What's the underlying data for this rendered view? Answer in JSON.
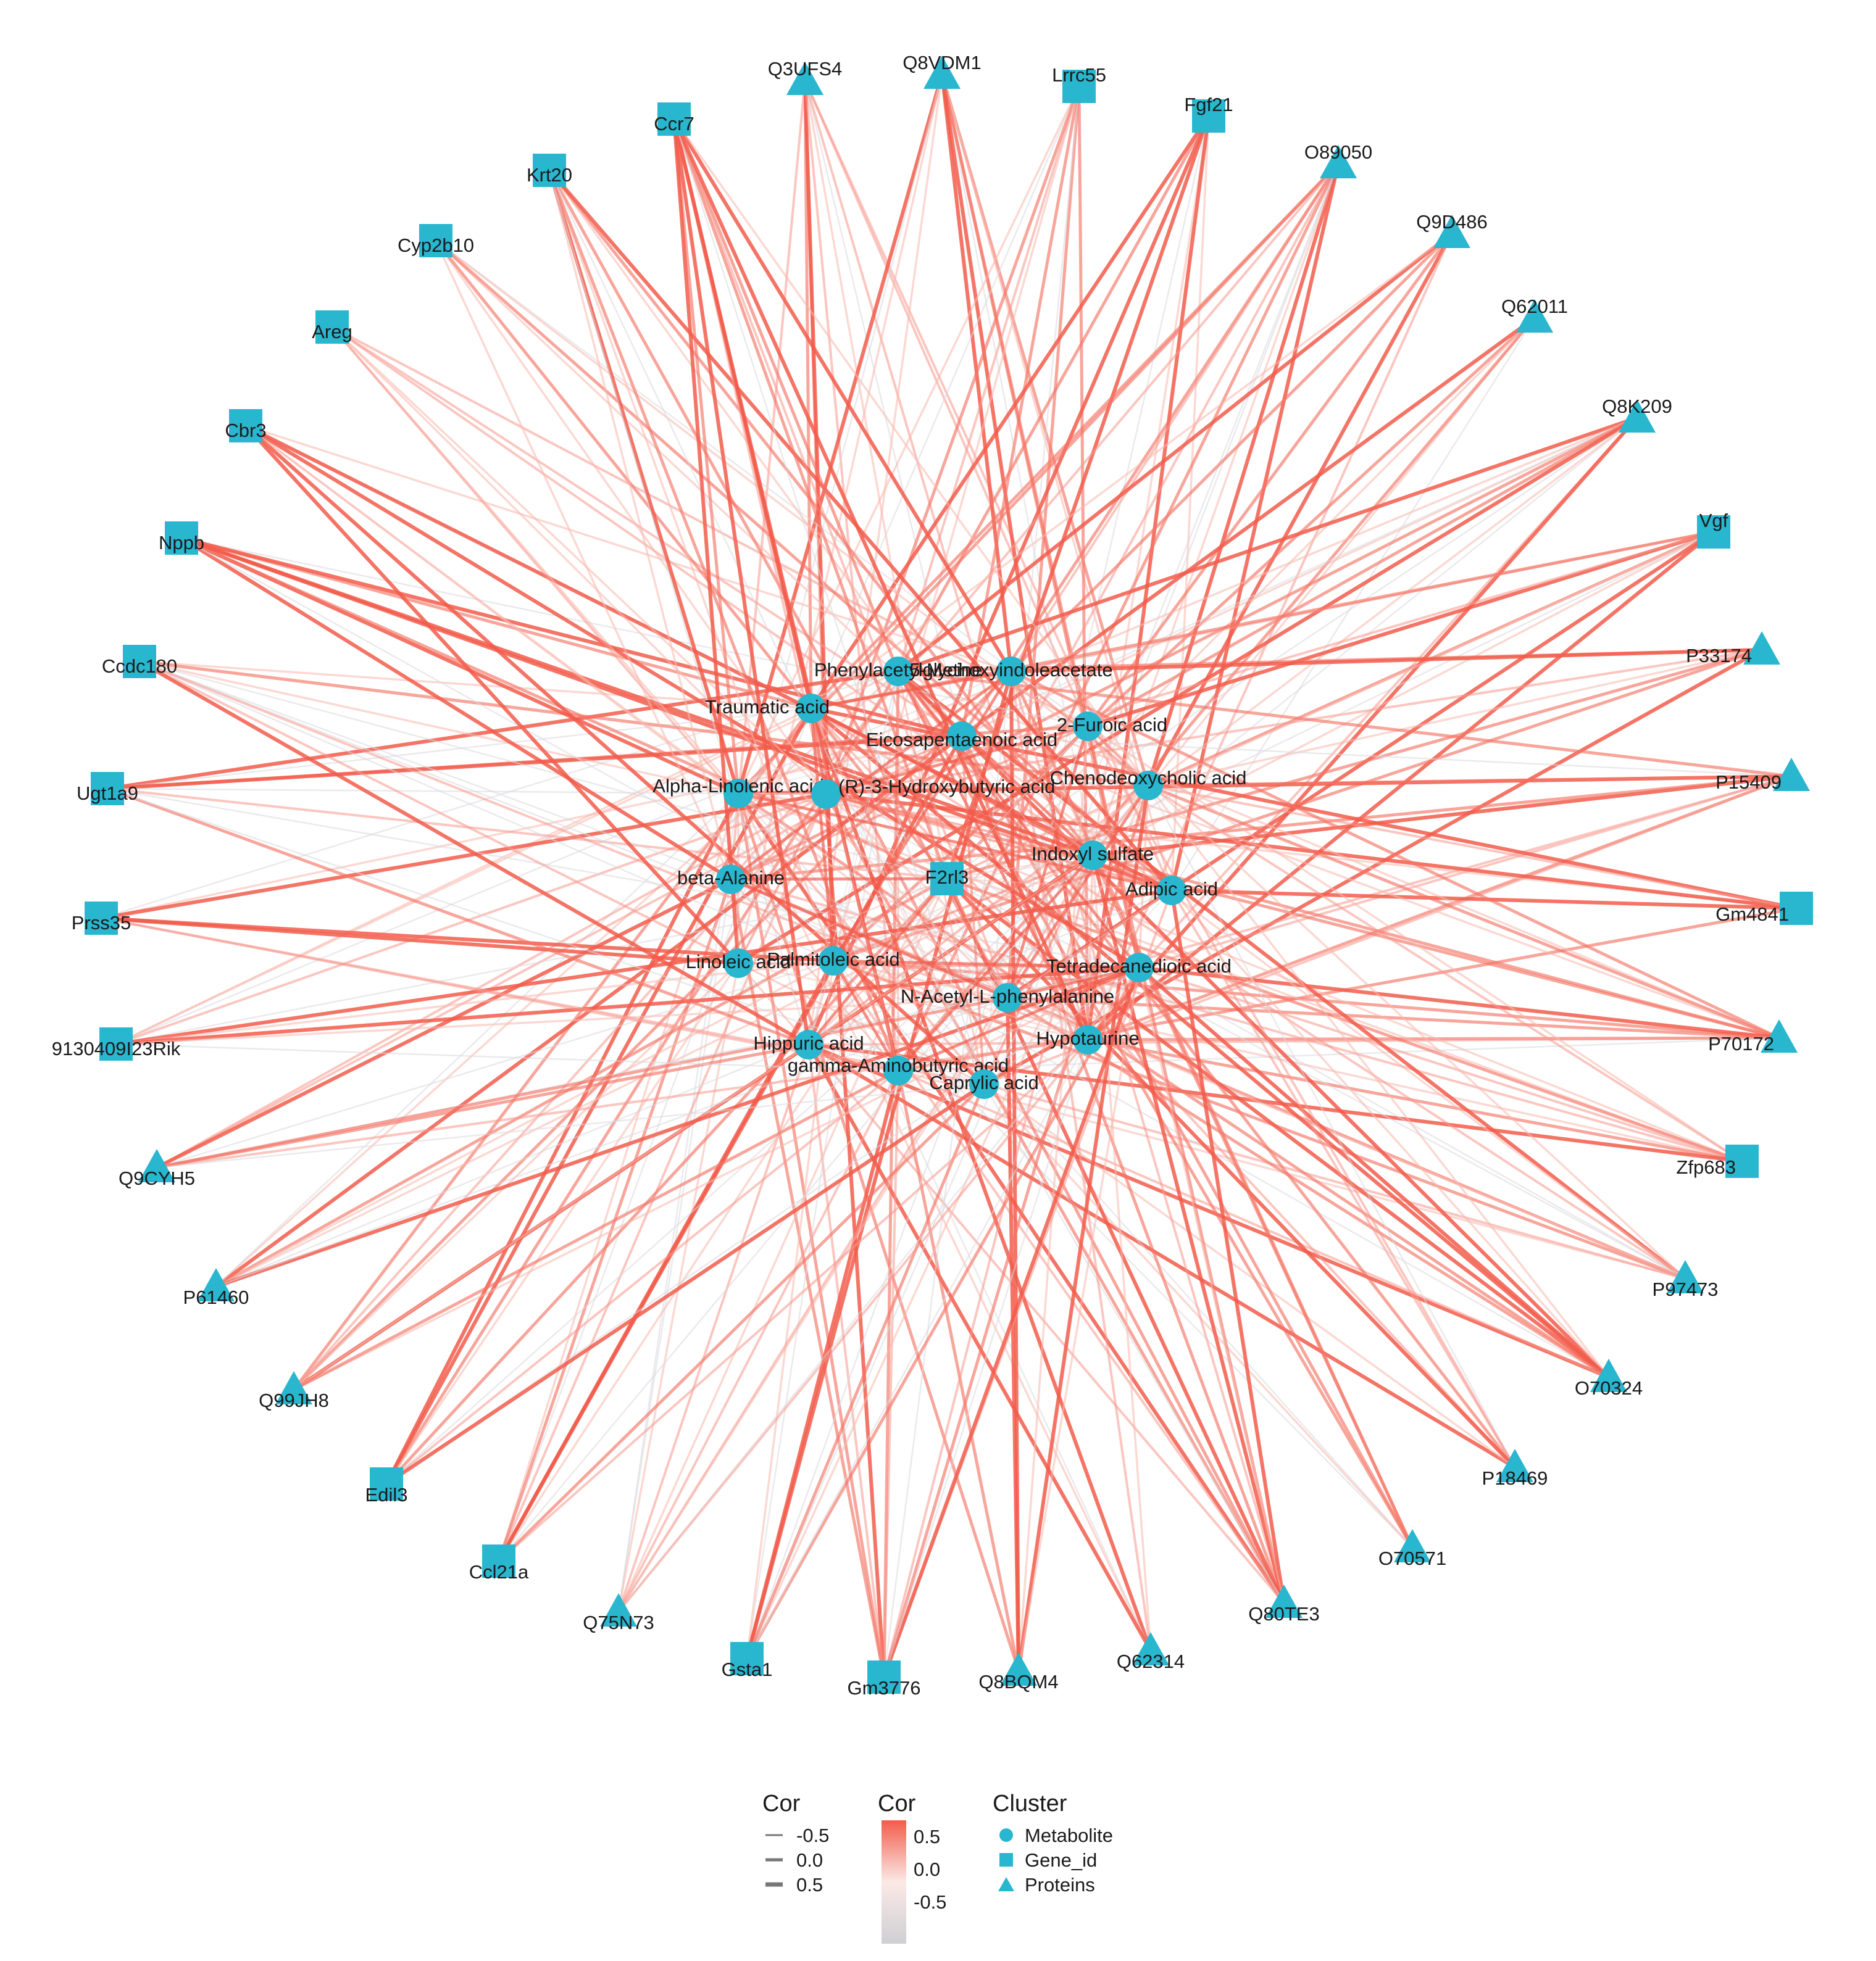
{
  "outer_nodes": [
    {
      "label": "Q3UFS4",
      "shape": "triangle"
    },
    {
      "label": "Q8VDM1",
      "shape": "triangle"
    },
    {
      "label": "Lrrc55",
      "shape": "square"
    },
    {
      "label": "Fgf21",
      "shape": "square"
    },
    {
      "label": "O89050",
      "shape": "triangle"
    },
    {
      "label": "Q9D486",
      "shape": "triangle"
    },
    {
      "label": "Q62011",
      "shape": "triangle"
    },
    {
      "label": "Q8K209",
      "shape": "triangle"
    },
    {
      "label": "Vgf",
      "shape": "square"
    },
    {
      "label": "P33174",
      "shape": "triangle"
    },
    {
      "label": "P15409",
      "shape": "triangle"
    },
    {
      "label": "Gm4841",
      "shape": "square"
    },
    {
      "label": "P70172",
      "shape": "triangle"
    },
    {
      "label": "Zfp683",
      "shape": "square"
    },
    {
      "label": "P97473",
      "shape": "triangle"
    },
    {
      "label": "O70324",
      "shape": "triangle"
    },
    {
      "label": "P18469",
      "shape": "triangle"
    },
    {
      "label": "O70571",
      "shape": "triangle"
    },
    {
      "label": "Q80TE3",
      "shape": "triangle"
    },
    {
      "label": "Q62314",
      "shape": "triangle"
    },
    {
      "label": "Q8BQM4",
      "shape": "triangle"
    },
    {
      "label": "Gm3776",
      "shape": "square"
    },
    {
      "label": "Gsta1",
      "shape": "square"
    },
    {
      "label": "Q75N73",
      "shape": "triangle"
    },
    {
      "label": "Ccl21a",
      "shape": "square"
    },
    {
      "label": "Edil3",
      "shape": "square"
    },
    {
      "label": "Q99JH8",
      "shape": "triangle"
    },
    {
      "label": "P61460",
      "shape": "triangle"
    },
    {
      "label": "Q9CYH5",
      "shape": "triangle"
    },
    {
      "label": "9130409I23Rik",
      "shape": "square"
    },
    {
      "label": "Prss35",
      "shape": "square"
    },
    {
      "label": "Ugt1a9",
      "shape": "square"
    },
    {
      "label": "Ccdc180",
      "shape": "square"
    },
    {
      "label": "Nppb",
      "shape": "square"
    },
    {
      "label": "Cbr3",
      "shape": "square"
    },
    {
      "label": "Areg",
      "shape": "square"
    },
    {
      "label": "Cyp2b10",
      "shape": "square"
    },
    {
      "label": "Krt20",
      "shape": "square"
    },
    {
      "label": "Ccr7",
      "shape": "square"
    }
  ],
  "inner_nodes": [
    {
      "label": "Phenylacetylglycine",
      "shape": "circle"
    },
    {
      "label": "5-Methoxyindoleacetate",
      "shape": "circle"
    },
    {
      "label": "Traumatic acid",
      "shape": "circle"
    },
    {
      "label": "2-Furoic acid",
      "shape": "circle"
    },
    {
      "label": "Eicosapentaenoic acid",
      "shape": "circle"
    },
    {
      "label": "Alpha-Linolenic acid",
      "shape": "circle"
    },
    {
      "label": "(R)-3-Hydroxybutyric acid",
      "shape": "circle"
    },
    {
      "label": "Chenodeoxycholic acid",
      "shape": "circle"
    },
    {
      "label": "Indoxyl sulfate",
      "shape": "circle"
    },
    {
      "label": "beta-Alanine",
      "shape": "circle"
    },
    {
      "label": "F2rl3",
      "shape": "square"
    },
    {
      "label": "Adipic acid",
      "shape": "circle"
    },
    {
      "label": "Linoleic acid",
      "shape": "circle"
    },
    {
      "label": "Palmitoleic acid",
      "shape": "circle"
    },
    {
      "label": "Tetradecanedioic acid",
      "shape": "circle"
    },
    {
      "label": "N-Acetyl-L-phenylalanine",
      "shape": "circle"
    },
    {
      "label": "Hypotaurine",
      "shape": "circle"
    },
    {
      "label": "Hippuric acid",
      "shape": "circle"
    },
    {
      "label": "gamma-Aminobutyric acid",
      "shape": "circle"
    },
    {
      "label": "Caprylic acid",
      "shape": "circle"
    }
  ],
  "legend": {
    "width_title": "Cor",
    "width_entries": [
      "-0.5",
      "0.0",
      "0.5"
    ],
    "color_title": "Cor",
    "color_ticks": [
      "0.5",
      "0.0",
      "-0.5"
    ],
    "cluster_title": "Cluster",
    "cluster_entries": [
      {
        "label": "Metabolite",
        "shape": "circle"
      },
      {
        "label": "Gene_id",
        "shape": "square"
      },
      {
        "label": "Proteins",
        "shape": "triangle"
      }
    ]
  },
  "colors": {
    "node": "#29b6cf",
    "edge_positive": "#f25c4b",
    "edge_mid": "#f7c6bd",
    "edge_negative": "#d9d9de",
    "text": "#1a1a1a"
  }
}
